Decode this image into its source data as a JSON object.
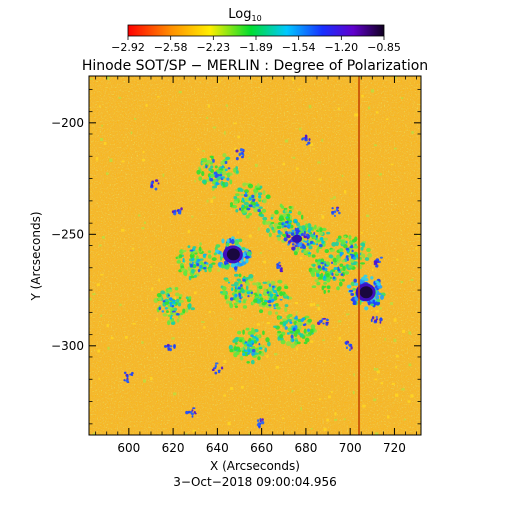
{
  "colorbar": {
    "title_main": "Log",
    "title_sub": "10",
    "tick_labels": [
      "−2.92",
      "−2.58",
      "−2.23",
      "−1.89",
      "−1.54",
      "−1.20",
      "−0.85"
    ]
  },
  "chart_data": {
    "type": "heatmap",
    "title": "Hinode SOT/SP − MERLIN : Degree of Polarization",
    "xlabel": "X (Arcseconds)",
    "ylabel": "Y (Arcseconds)",
    "xlim": [
      582,
      732
    ],
    "ylim": [
      -340,
      -179
    ],
    "x_ticks": [
      600,
      620,
      640,
      660,
      680,
      700,
      720
    ],
    "x_tick_labels": [
      "600",
      "620",
      "640",
      "660",
      "680",
      "700",
      "720"
    ],
    "y_ticks": [
      -200,
      -250,
      -300
    ],
    "y_tick_labels": [
      "−200",
      "−250",
      "−300"
    ],
    "colorbar_range": [
      -2.92,
      -0.85
    ],
    "colorbar_scale": "log10",
    "colormap": "rainbow (red → orange → yellow → green → cyan → blue → violet → black)",
    "background_level_color": "#f0c030",
    "features": [
      {
        "kind": "sunspot",
        "x": 647,
        "y": -259,
        "log_dop": -0.85
      },
      {
        "kind": "sunspot",
        "x": 707,
        "y": -276,
        "log_dop": -0.9
      },
      {
        "kind": "magnetic-region",
        "x": 676,
        "y": -252,
        "log_dop": -1.1
      },
      {
        "kind": "artifact-column",
        "x": 704,
        "color": "#c04000"
      }
    ],
    "footer": "3−Oct−2018 09:00:04.956"
  }
}
